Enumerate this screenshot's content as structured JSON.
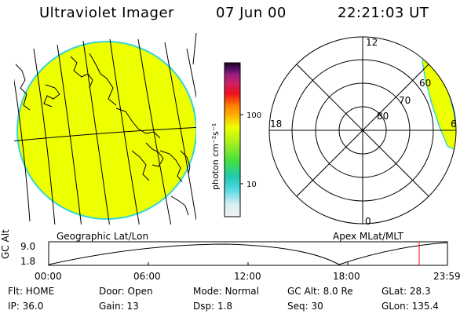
{
  "header": {
    "instrument": "Ultraviolet Imager",
    "date": "07 Jun 00",
    "time": "22:21:03 UT"
  },
  "colorbar": {
    "unit_label": "photon cm⁻²s⁻¹",
    "tick_100": "100",
    "tick_10": "10",
    "scale": "log"
  },
  "map_panel": {
    "caption": "Geographic Lat/Lon",
    "fill_color": "#eeff00"
  },
  "polar_panel": {
    "caption": "Apex MLat/MLT",
    "mlt_labels": {
      "top": "12",
      "left": "18",
      "right": "6",
      "bottom": "0"
    },
    "mlat_labels": [
      "80",
      "70",
      "60"
    ]
  },
  "altitude_plot": {
    "ylabel": "GC Alt",
    "y_ticks": [
      "9.0",
      "1.8"
    ],
    "x_ticks": [
      "00:00",
      "06:00",
      "12:00",
      "18:00",
      "23:59"
    ],
    "marker_color": "#ff0000"
  },
  "status": {
    "row1": {
      "flt": "Flt: HOME",
      "door": "Door: Open",
      "mode": "Mode: Normal",
      "gc_alt": "GC Alt: 8.0 Re",
      "glat": "GLat:  28.3"
    },
    "row2": {
      "ip": "IP: 36.0",
      "gain": "Gain: 13",
      "dsp": "Dsp:     1.8",
      "seq": "Seq: 30",
      "glon": "GLon: 135.4"
    }
  }
}
